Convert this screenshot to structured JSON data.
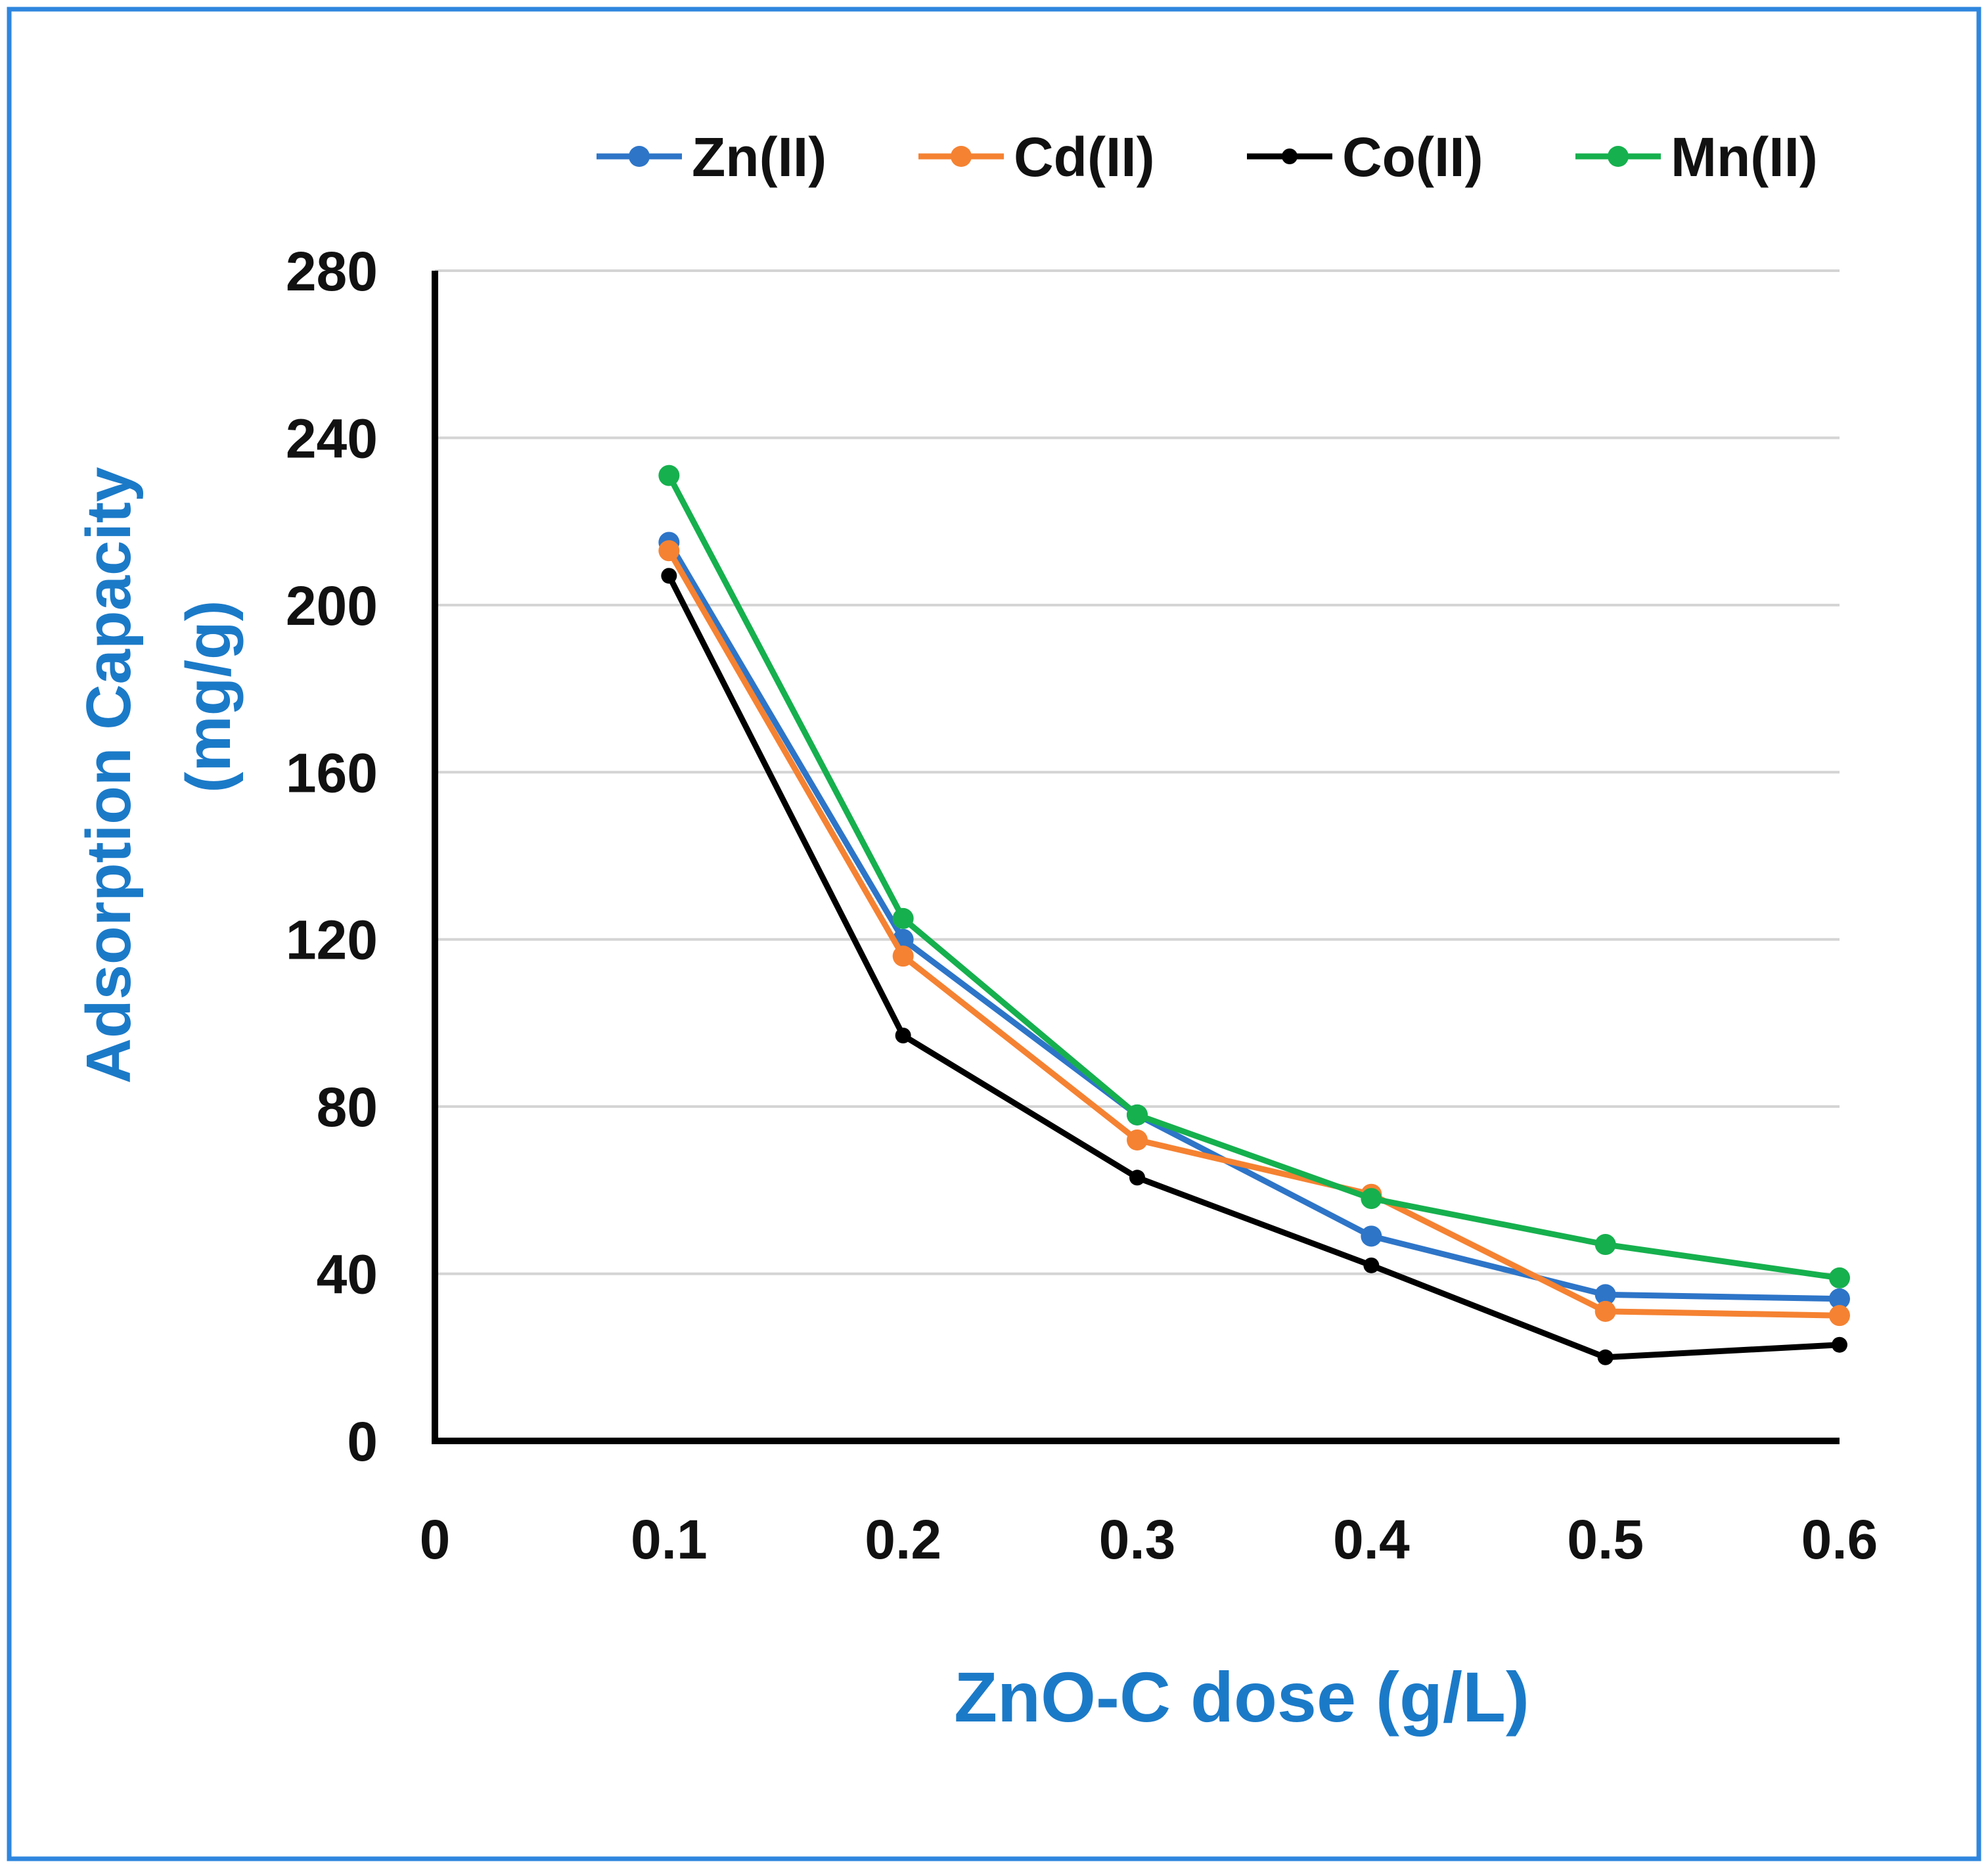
{
  "chart_data": {
    "type": "line",
    "xlabel": "ZnO-C dose (g/L)",
    "ylabel_line1": "Adsorption Capacity",
    "ylabel_line2": "(mg/g)",
    "xlim": [
      0,
      0.6
    ],
    "ylim": [
      0,
      280
    ],
    "x_ticks": [
      "0",
      "0.1",
      "0.2",
      "0.3",
      "0.4",
      "0.5",
      "0.6"
    ],
    "x_tick_values": [
      0,
      0.1,
      0.2,
      0.3,
      0.4,
      0.5,
      0.6
    ],
    "y_ticks": [
      "0",
      "40",
      "80",
      "120",
      "160",
      "200",
      "240",
      "280"
    ],
    "y_tick_values": [
      0,
      40,
      80,
      120,
      160,
      200,
      240,
      280
    ],
    "x": [
      0.1,
      0.2,
      0.3,
      0.4,
      0.5,
      0.6
    ],
    "grid": "horizontal",
    "legend_position": "top",
    "accent_color": "#1b7ac8",
    "series": [
      {
        "name": "Zn(II)",
        "color": "#2e75c8",
        "values": [
          215,
          120,
          78,
          49,
          35,
          34
        ]
      },
      {
        "name": "Cd(II)",
        "color": "#f58232",
        "values": [
          213,
          116,
          72,
          59,
          31,
          30
        ]
      },
      {
        "name": "Co(II)",
        "color": "#000000",
        "values": [
          207,
          97,
          63,
          42,
          20,
          23
        ]
      },
      {
        "name": "Mn(II)",
        "color": "#16b04e",
        "values": [
          231,
          125,
          78,
          58,
          47,
          39
        ]
      }
    ]
  }
}
